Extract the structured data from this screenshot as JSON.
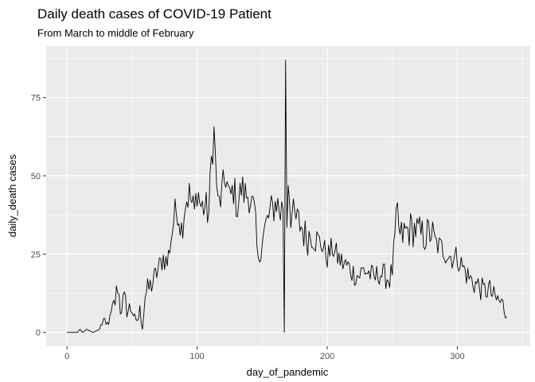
{
  "chart_data": {
    "type": "line",
    "title": "Daily death cases of COVID-19 Patient",
    "subtitle": "From March to middle of February",
    "xlabel": "day_of_pandemic",
    "ylabel": "daily_death cases",
    "xlim": [
      -16,
      356
    ],
    "ylim": [
      -4.4,
      91.4
    ],
    "x_ticks": [
      0,
      100,
      200,
      300
    ],
    "y_ticks": [
      0,
      25,
      50,
      75
    ],
    "x_tick_labels": [
      "0",
      "100",
      "200",
      "300"
    ],
    "y_tick_labels": [
      "0",
      "25",
      "50",
      "75"
    ],
    "grid": true,
    "background": "#ebebeb",
    "gridline_color": "#ffffff",
    "line_color": "#000000",
    "keypoints": [
      [
        0,
        0
      ],
      [
        8,
        0
      ],
      [
        10,
        1
      ],
      [
        12,
        0
      ],
      [
        15,
        1
      ],
      [
        20,
        0
      ],
      [
        25,
        1
      ],
      [
        28,
        4
      ],
      [
        30,
        2
      ],
      [
        34,
        5
      ],
      [
        37,
        10
      ],
      [
        39,
        15
      ],
      [
        41,
        8
      ],
      [
        44,
        10
      ],
      [
        47,
        7
      ],
      [
        50,
        8
      ],
      [
        53,
        3
      ],
      [
        56,
        6
      ],
      [
        58,
        2
      ],
      [
        60,
        12
      ],
      [
        63,
        14
      ],
      [
        66,
        16
      ],
      [
        70,
        20
      ],
      [
        74,
        24
      ],
      [
        77,
        22
      ],
      [
        80,
        30
      ],
      [
        82,
        36
      ],
      [
        85,
        40
      ],
      [
        88,
        33
      ],
      [
        91,
        42
      ],
      [
        94,
        44
      ],
      [
        98,
        38
      ],
      [
        100,
        46
      ],
      [
        103,
        40
      ],
      [
        106,
        40
      ],
      [
        109,
        38
      ],
      [
        111,
        55
      ],
      [
        113,
        64
      ],
      [
        116,
        40
      ],
      [
        119,
        44
      ],
      [
        122,
        50
      ],
      [
        125,
        42
      ],
      [
        128,
        46
      ],
      [
        131,
        40
      ],
      [
        134,
        46
      ],
      [
        137,
        44
      ],
      [
        140,
        44
      ],
      [
        144,
        38
      ],
      [
        147,
        21
      ],
      [
        150,
        30
      ],
      [
        153,
        34
      ],
      [
        156,
        38
      ],
      [
        159,
        40
      ],
      [
        161,
        42
      ],
      [
        164,
        38
      ],
      [
        166,
        41
      ],
      [
        167,
        0
      ],
      [
        168,
        87
      ],
      [
        169,
        35
      ],
      [
        170,
        50
      ],
      [
        172,
        38
      ],
      [
        176,
        36
      ],
      [
        180,
        34
      ],
      [
        184,
        30
      ],
      [
        188,
        32
      ],
      [
        192,
        30
      ],
      [
        196,
        28
      ],
      [
        200,
        24
      ],
      [
        204,
        27
      ],
      [
        208,
        24
      ],
      [
        212,
        22
      ],
      [
        216,
        21
      ],
      [
        220,
        19
      ],
      [
        224,
        18
      ],
      [
        228,
        20
      ],
      [
        232,
        19
      ],
      [
        236,
        17
      ],
      [
        240,
        19
      ],
      [
        244,
        18
      ],
      [
        248,
        17
      ],
      [
        250,
        20
      ],
      [
        252,
        30
      ],
      [
        254,
        38
      ],
      [
        256,
        30
      ],
      [
        260,
        32
      ],
      [
        264,
        33
      ],
      [
        268,
        33
      ],
      [
        272,
        31
      ],
      [
        276,
        31
      ],
      [
        280,
        32
      ],
      [
        284,
        28
      ],
      [
        288,
        27
      ],
      [
        292,
        25
      ],
      [
        296,
        24
      ],
      [
        300,
        24
      ],
      [
        304,
        21
      ],
      [
        308,
        18
      ],
      [
        312,
        16
      ],
      [
        316,
        15
      ],
      [
        320,
        13
      ],
      [
        324,
        14
      ],
      [
        328,
        11
      ],
      [
        332,
        10
      ],
      [
        336,
        8
      ],
      [
        338,
        5
      ]
    ]
  }
}
